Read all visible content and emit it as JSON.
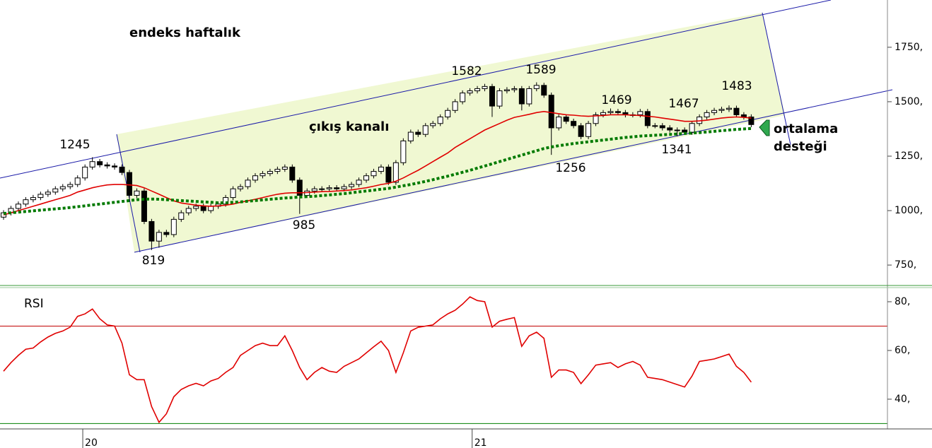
{
  "chart_data": [
    {
      "type": "candlestick",
      "title": "endeks haftalık",
      "annotations": [
        "çıkış kanalı",
        "ortalama",
        "desteği",
        "1245",
        "819",
        "985",
        "1582",
        "1589",
        "1256",
        "1469",
        "1341",
        "1467",
        "1483"
      ],
      "open": [
        970,
        990,
        1010,
        1030,
        1050,
        1060,
        1075,
        1085,
        1100,
        1110,
        1120,
        1150,
        1200,
        1225,
        1210,
        1205,
        1200,
        1175,
        1070,
        1090,
        950,
        860,
        900,
        890,
        960,
        990,
        1010,
        1020,
        1000,
        1020,
        1030,
        1060,
        1100,
        1110,
        1140,
        1160,
        1170,
        1180,
        1190,
        1200,
        1140,
        1070,
        1090,
        1100,
        1100,
        1105,
        1100,
        1110,
        1120,
        1140,
        1160,
        1180,
        1200,
        1130,
        1220,
        1320,
        1360,
        1350,
        1390,
        1400,
        1430,
        1460,
        1500,
        1540,
        1550,
        1560,
        1570,
        1480,
        1550,
        1555,
        1560,
        1490,
        1560,
        1575,
        1530,
        1380,
        1430,
        1410,
        1390,
        1340,
        1400,
        1440,
        1450,
        1455,
        1450,
        1440,
        1440,
        1455,
        1390,
        1390,
        1380,
        1370,
        1370,
        1360,
        1400,
        1430,
        1450,
        1460,
        1465,
        1470,
        1440,
        1430
      ],
      "high": [
        1002,
        1022,
        1042,
        1062,
        1072,
        1087,
        1097,
        1112,
        1122,
        1132,
        1162,
        1212,
        1245,
        1237,
        1222,
        1217,
        1212,
        1187,
        1102,
        1102,
        962,
        912,
        912,
        972,
        1002,
        1022,
        1032,
        1032,
        1032,
        1042,
        1072,
        1112,
        1122,
        1152,
        1172,
        1182,
        1192,
        1202,
        1212,
        1212,
        1152,
        1102,
        1112,
        1112,
        1117,
        1117,
        1122,
        1132,
        1152,
        1172,
        1192,
        1212,
        1212,
        1232,
        1332,
        1372,
        1372,
        1402,
        1412,
        1442,
        1472,
        1512,
        1552,
        1562,
        1572,
        1582,
        1582,
        1562,
        1567,
        1572,
        1572,
        1572,
        1589,
        1587,
        1542,
        1442,
        1442,
        1422,
        1402,
        1412,
        1452,
        1462,
        1469,
        1467,
        1462,
        1452,
        1467,
        1467,
        1402,
        1402,
        1392,
        1382,
        1382,
        1412,
        1442,
        1462,
        1472,
        1477,
        1483,
        1482,
        1452,
        1442
      ],
      "low": [
        958,
        978,
        998,
        1018,
        1038,
        1048,
        1063,
        1073,
        1088,
        1098,
        1108,
        1138,
        1188,
        1198,
        1193,
        1188,
        1163,
        1040,
        1058,
        938,
        819,
        830,
        878,
        878,
        948,
        978,
        998,
        988,
        988,
        1008,
        1018,
        1048,
        1088,
        1098,
        1128,
        1148,
        1158,
        1168,
        1178,
        1128,
        985,
        1058,
        1078,
        1088,
        1088,
        1088,
        1088,
        1098,
        1108,
        1128,
        1148,
        1168,
        1118,
        1118,
        1208,
        1308,
        1338,
        1338,
        1378,
        1388,
        1418,
        1448,
        1488,
        1528,
        1538,
        1548,
        1430,
        1468,
        1538,
        1543,
        1460,
        1478,
        1548,
        1518,
        1256,
        1368,
        1398,
        1378,
        1328,
        1328,
        1388,
        1428,
        1438,
        1438,
        1428,
        1428,
        1428,
        1378,
        1378,
        1368,
        1358,
        1341,
        1348,
        1348,
        1388,
        1418,
        1438,
        1448,
        1453,
        1428,
        1418,
        1383
      ],
      "close": [
        990,
        1010,
        1030,
        1050,
        1060,
        1075,
        1085,
        1100,
        1110,
        1120,
        1150,
        1200,
        1225,
        1210,
        1205,
        1200,
        1175,
        1070,
        1090,
        950,
        860,
        900,
        890,
        960,
        990,
        1010,
        1020,
        1000,
        1020,
        1030,
        1060,
        1100,
        1110,
        1140,
        1160,
        1170,
        1180,
        1190,
        1200,
        1140,
        1070,
        1090,
        1100,
        1100,
        1105,
        1100,
        1110,
        1120,
        1140,
        1160,
        1180,
        1200,
        1130,
        1220,
        1320,
        1360,
        1350,
        1390,
        1400,
        1430,
        1460,
        1500,
        1540,
        1550,
        1560,
        1570,
        1480,
        1550,
        1555,
        1560,
        1490,
        1560,
        1575,
        1530,
        1380,
        1430,
        1410,
        1390,
        1340,
        1400,
        1440,
        1450,
        1455,
        1450,
        1440,
        1440,
        1455,
        1390,
        1390,
        1380,
        1370,
        1370,
        1360,
        1400,
        1430,
        1450,
        1460,
        1465,
        1470,
        1440,
        1430,
        1395
      ],
      "up_color": "#ffffff",
      "down_color": "#000000",
      "series": [
        {
          "color": "#e00000",
          "style": "solid",
          "values": [
            980,
            990,
            1000,
            1010,
            1020,
            1030,
            1040,
            1050,
            1060,
            1070,
            1085,
            1095,
            1105,
            1112,
            1118,
            1120,
            1120,
            1118,
            1115,
            1105,
            1090,
            1075,
            1060,
            1045,
            1035,
            1030,
            1025,
            1022,
            1020,
            1022,
            1025,
            1030,
            1038,
            1045,
            1052,
            1060,
            1068,
            1075,
            1080,
            1082,
            1082,
            1083,
            1085,
            1087,
            1088,
            1090,
            1092,
            1095,
            1100,
            1105,
            1112,
            1120,
            1125,
            1135,
            1150,
            1168,
            1185,
            1205,
            1225,
            1245,
            1265,
            1290,
            1310,
            1330,
            1350,
            1370,
            1385,
            1400,
            1415,
            1428,
            1435,
            1442,
            1450,
            1455,
            1450,
            1445,
            1440,
            1438,
            1435,
            1433,
            1435,
            1437,
            1440,
            1440,
            1440,
            1438,
            1437,
            1433,
            1430,
            1425,
            1420,
            1415,
            1410,
            1410,
            1412,
            1415,
            1420,
            1425,
            1428,
            1430,
            1428,
            1425
          ]
        },
        {
          "color": "#007a00",
          "style": "dotted",
          "values": [
            987,
            990,
            993,
            996,
            999,
            1002,
            1005,
            1008,
            1011,
            1014,
            1018,
            1022,
            1026,
            1030,
            1034,
            1038,
            1042,
            1046,
            1050,
            1052,
            1053,
            1052,
            1050,
            1048,
            1046,
            1044,
            1042,
            1040,
            1038,
            1036,
            1036,
            1038,
            1040,
            1043,
            1046,
            1049,
            1052,
            1055,
            1058,
            1060,
            1062,
            1064,
            1066,
            1069,
            1072,
            1075,
            1078,
            1082,
            1086,
            1090,
            1094,
            1098,
            1102,
            1108,
            1114,
            1120,
            1127,
            1134,
            1142,
            1150,
            1158,
            1167,
            1176,
            1185,
            1195,
            1205,
            1215,
            1225,
            1235,
            1245,
            1255,
            1265,
            1275,
            1285,
            1292,
            1298,
            1303,
            1308,
            1312,
            1316,
            1320,
            1324,
            1328,
            1332,
            1336,
            1339,
            1342,
            1344,
            1346,
            1348,
            1350,
            1352,
            1354,
            1356,
            1358,
            1361,
            1364,
            1367,
            1370,
            1373,
            1375,
            1377
          ]
        }
      ],
      "xlim": [
        -0.48,
        119.4
      ],
      "ylim": [
        653,
        1967
      ],
      "yticks": [
        {
          "value": 750,
          "label": "750,"
        },
        {
          "value": 1000,
          "label": "1000,"
        },
        {
          "value": 1250,
          "label": "1250,"
        },
        {
          "value": 1500,
          "label": "1500,"
        },
        {
          "value": 1750,
          "label": "1750,"
        }
      ]
    },
    {
      "type": "line",
      "title": "RSI",
      "color": "#e00000",
      "values": [
        51.5,
        55,
        58,
        60.5,
        61,
        63.5,
        65.5,
        67,
        68,
        69.6,
        74,
        75,
        77,
        73,
        70.5,
        70,
        63,
        50,
        48,
        48,
        37,
        30.5,
        34,
        41,
        44,
        45.5,
        46.5,
        45.5,
        47.5,
        48.5,
        51,
        53,
        58,
        60,
        62,
        63,
        62,
        62,
        66,
        60,
        53,
        48,
        51,
        53,
        51.5,
        51,
        53.5,
        55,
        56.5,
        59,
        61.5,
        63.8,
        60,
        51,
        59,
        68,
        69.5,
        70,
        70.5,
        73,
        75,
        76.5,
        79,
        82,
        80.5,
        80,
        69.6,
        72,
        72.8,
        73.5,
        61.7,
        66,
        67.5,
        65,
        49,
        52,
        52,
        51,
        46.4,
        50,
        54,
        54.5,
        55,
        53,
        54.5,
        55.5,
        54,
        49,
        48.5,
        48,
        47,
        46,
        45,
        49.5,
        55.5,
        56,
        56.5,
        57.5,
        58.5,
        53.5,
        51,
        47
      ],
      "levels": [
        {
          "value": 70,
          "color": "#c00000"
        },
        {
          "value": 30,
          "color": "#008000"
        }
      ],
      "xlim": [
        -0.48,
        119.4
      ],
      "ylim": [
        27.8,
        85.8
      ],
      "yticks": [
        {
          "value": 40,
          "label": "40,"
        },
        {
          "value": 60,
          "label": "60,"
        },
        {
          "value": 80,
          "label": "80,"
        }
      ],
      "xticks": [
        {
          "value": 10.7,
          "label": "20"
        },
        {
          "value": 63.3,
          "label": "21"
        }
      ]
    }
  ]
}
